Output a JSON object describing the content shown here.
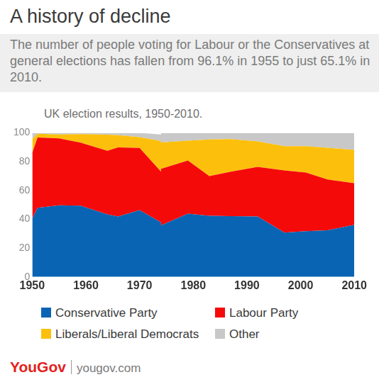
{
  "chart_data": {
    "type": "area",
    "title": "A history of decline",
    "subtitle": "The number of people voting for Labour or the Conservatives at general elections has fallen from 96.1% in 1955 to just 65.1% in 2010.",
    "annotations": [
      "UK election results, 1950-2010.",
      "YouGov",
      "yougov.com"
    ],
    "x": [
      1950,
      1951,
      1955,
      1959,
      1964,
      1966,
      1970,
      1974,
      1974,
      1979,
      1983,
      1987,
      1992,
      1997,
      2001,
      2005,
      2010
    ],
    "series": [
      {
        "name": "Conservative Party",
        "color": "#0a64b4",
        "values": [
          40.5,
          48.0,
          49.7,
          49.4,
          43.4,
          41.9,
          46.4,
          37.9,
          35.8,
          43.9,
          42.4,
          42.2,
          41.9,
          30.7,
          31.7,
          32.4,
          36.1
        ]
      },
      {
        "name": "Labour Party",
        "color": "#f50a0a",
        "values": [
          45.5,
          48.8,
          46.4,
          43.8,
          44.1,
          48.0,
          43.1,
          37.2,
          39.2,
          36.9,
          27.6,
          30.8,
          34.4,
          43.2,
          40.7,
          35.2,
          29.0
        ]
      },
      {
        "name": "Liberals/Liberal Democrats",
        "color": "#fcc00c",
        "values": [
          9.5,
          2.5,
          2.7,
          5.9,
          11.2,
          8.5,
          7.5,
          19.3,
          18.3,
          13.8,
          25.4,
          22.6,
          17.8,
          16.8,
          18.3,
          22.0,
          23.0
        ]
      },
      {
        "name": "Other",
        "color": "#c8c8c8",
        "values": [
          4.5,
          0.7,
          1.2,
          0.9,
          1.3,
          1.6,
          3.0,
          5.6,
          6.7,
          5.4,
          4.6,
          4.4,
          5.9,
          9.3,
          9.3,
          10.4,
          11.9
        ]
      }
    ],
    "xlim": [
      1950,
      2010
    ],
    "xticks": [
      1950,
      1960,
      1970,
      1980,
      1990,
      2000,
      2010
    ],
    "ylim": [
      0,
      100
    ],
    "yticks": [
      0,
      20,
      40,
      60,
      80,
      100
    ],
    "stacked": true,
    "grid": false,
    "legend": "bottom"
  }
}
